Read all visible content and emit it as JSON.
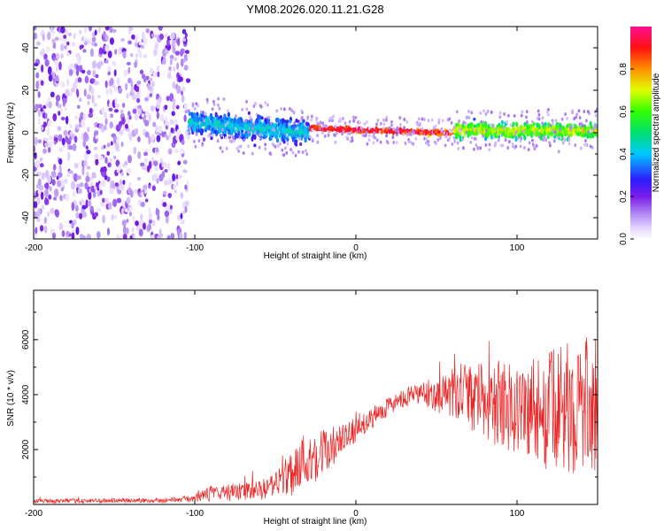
{
  "chart_data": [
    {
      "type": "heatmap",
      "title": "YM08.2026.020.11.21.G28",
      "xlabel": "Height of straight line (km)",
      "ylabel": "Frequency (Hz)",
      "xlim": [
        -200,
        150
      ],
      "ylim": [
        -50,
        50
      ],
      "xticks": [
        -200,
        -100,
        0,
        100
      ],
      "yticks": [
        -40,
        -20,
        0,
        20,
        40
      ],
      "grid": false,
      "colorbar": {
        "label": "Normalized spectral amplitude",
        "range": [
          0,
          1
        ],
        "ticks": [
          0.0,
          0.2,
          0.4,
          0.6,
          0.8
        ],
        "colormap": "rainbow (white-lavender-purple-blue-cyan-green-yellow-orange-red-magenta)"
      },
      "regions": [
        {
          "x_range": [
            -200,
            -105
          ],
          "description": "random speckle noise across all frequencies",
          "amplitude_range": [
            0.0,
            0.2
          ]
        },
        {
          "x_range": [
            -105,
            -30
          ],
          "centre_freq": [
            5,
            0
          ],
          "width_hz": 15,
          "amplitude_range": [
            0.15,
            0.5
          ]
        },
        {
          "x_range": [
            -30,
            60
          ],
          "centre_freq": [
            2,
            0
          ],
          "width_hz": 3,
          "amplitude_range": [
            0.7,
            1.0
          ]
        },
        {
          "x_range": [
            60,
            150
          ],
          "centre_freq": [
            1,
            1
          ],
          "width_hz": 10,
          "amplitude_range": [
            0.3,
            0.8
          ]
        }
      ]
    },
    {
      "type": "line",
      "title": "",
      "xlabel": "Height of straight line (km)",
      "ylabel": "SNR (10 * v/v)",
      "xlim": [
        -200,
        150
      ],
      "ylim": [
        0,
        7800
      ],
      "xticks": [
        -200,
        -100,
        0,
        100
      ],
      "yticks": [
        2000,
        4000,
        6000
      ],
      "grid": false,
      "series": [
        {
          "name": "SNR",
          "color": "#ee2222",
          "envelope": {
            "x": [
              -200,
              -120,
              -100,
              -90,
              -60,
              -50,
              -40,
              -30,
              -20,
              -10,
              0,
              20,
              40,
              60,
              80,
              100,
              120,
              140,
              150
            ],
            "mean": [
              120,
              150,
              220,
              400,
              500,
              700,
              1200,
              1700,
              1900,
              2200,
              2700,
              3600,
              4050,
              3950,
              3800,
              3500,
              3400,
              3600,
              3600
            ],
            "spread": [
              80,
              90,
              120,
              300,
              350,
              450,
              900,
              1100,
              900,
              700,
              400,
              350,
              400,
              900,
              1400,
              1800,
              2200,
              2500,
              2500
            ]
          }
        }
      ]
    }
  ]
}
